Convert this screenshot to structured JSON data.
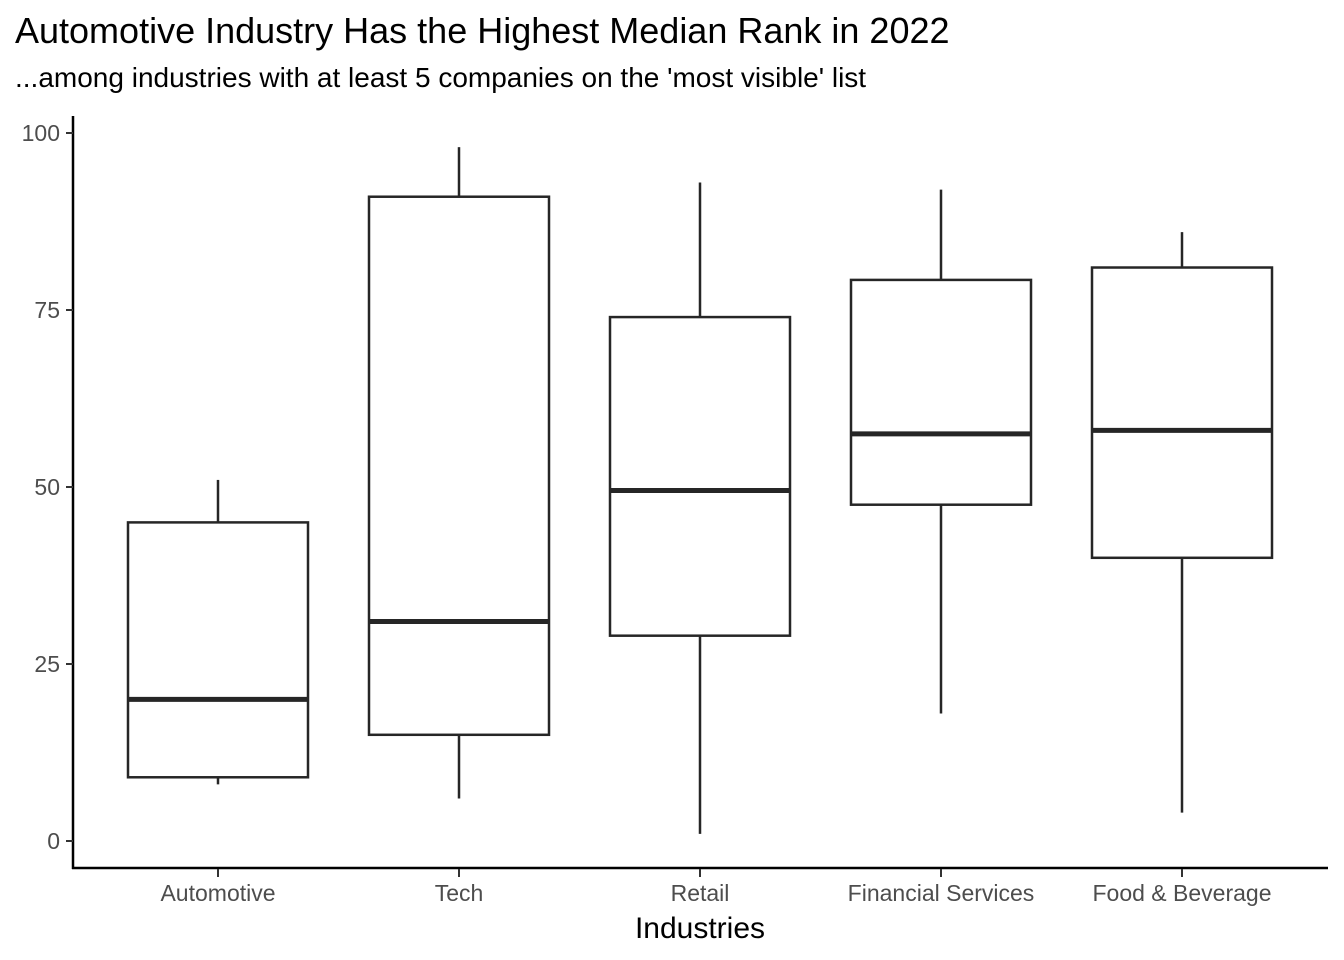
{
  "chart_data": {
    "type": "boxplot",
    "title": "Automotive Industry Has the Highest Median Rank in 2022",
    "subtitle": "...among industries with at least 5 companies on the 'most visible' list",
    "xlabel": "Industries",
    "ylabel": "",
    "ylim": [
      -4,
      102
    ],
    "yticks": [
      0,
      25,
      50,
      75,
      100
    ],
    "categories": [
      "Automotive",
      "Tech",
      "Retail",
      "Financial Services",
      "Food & Beverage"
    ],
    "boxes": [
      {
        "category": "Automotive",
        "min": 8,
        "q1": 9,
        "median": 20,
        "q3": 45,
        "max": 51
      },
      {
        "category": "Tech",
        "min": 6,
        "q1": 15,
        "median": 31,
        "q3": 91,
        "max": 98
      },
      {
        "category": "Retail",
        "min": 1,
        "q1": 29,
        "median": 49.5,
        "q3": 74,
        "max": 93
      },
      {
        "category": "Financial Services",
        "min": 18,
        "q1": 47.5,
        "median": 57.5,
        "q3": 79.25,
        "max": 92
      },
      {
        "category": "Food & Beverage",
        "min": 4,
        "q1": 40,
        "median": 58,
        "q3": 81,
        "max": 86
      }
    ],
    "grid": false,
    "legend": "none"
  }
}
